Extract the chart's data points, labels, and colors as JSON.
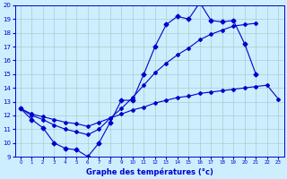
{
  "title": "Graphe des températures (°c)",
  "bg_color": "#cceeff",
  "grid_color": "#aacccc",
  "line_color": "#0000cc",
  "x_hours": [
    0,
    1,
    2,
    3,
    4,
    5,
    6,
    7,
    8,
    9,
    10,
    11,
    12,
    13,
    14,
    15,
    16,
    17,
    18,
    19,
    20,
    21,
    22,
    23
  ],
  "temp_main": [
    12.5,
    11.7,
    11.1,
    10.0,
    9.6,
    9.5,
    9.0,
    10.0,
    11.5,
    13.1,
    13.1,
    15.0,
    17.0,
    18.6,
    19.2,
    19.0,
    20.2,
    18.9,
    18.8,
    18.9,
    17.2,
    15.0,
    null,
    null
  ],
  "temp_line2": [
    12.5,
    12.0,
    11.7,
    11.3,
    11.0,
    10.8,
    10.6,
    11.0,
    11.8,
    12.5,
    13.3,
    14.2,
    15.1,
    15.8,
    16.4,
    16.9,
    17.5,
    17.9,
    18.2,
    18.5,
    18.6,
    18.7,
    null,
    null
  ],
  "temp_line3": [
    12.5,
    12.1,
    11.9,
    11.7,
    11.5,
    11.4,
    11.2,
    11.5,
    11.8,
    12.1,
    12.4,
    12.6,
    12.9,
    13.1,
    13.3,
    13.4,
    13.6,
    13.7,
    13.8,
    13.9,
    14.0,
    14.1,
    14.2,
    13.2
  ],
  "ylim": [
    9,
    20
  ],
  "xlim": [
    0,
    23
  ],
  "yticks": [
    9,
    10,
    11,
    12,
    13,
    14,
    15,
    16,
    17,
    18,
    19,
    20
  ],
  "xticks": [
    0,
    1,
    2,
    3,
    4,
    5,
    6,
    7,
    8,
    9,
    10,
    11,
    12,
    13,
    14,
    15,
    16,
    17,
    18,
    19,
    20,
    21,
    22,
    23
  ]
}
